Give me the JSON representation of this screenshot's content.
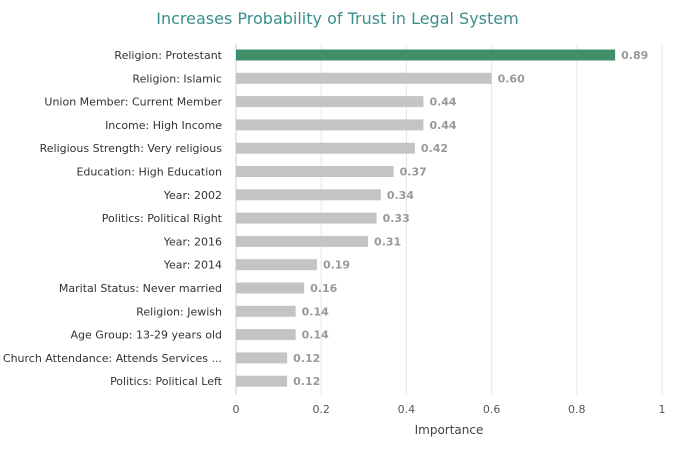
{
  "chart_data": {
    "type": "bar",
    "orientation": "horizontal",
    "title": "Increases Probability of Trust in Legal System",
    "xlabel": "Importance",
    "ylabel": "",
    "xlim": [
      0,
      1
    ],
    "xticks": [
      "0",
      "0.2",
      "0.4",
      "0.6",
      "0.8",
      "1"
    ],
    "grid": true,
    "highlight_color": "#3f8f6b",
    "bar_color": "#c4c4c4",
    "title_color": "#3b8f8a",
    "categories": [
      "Religion: Protestant",
      "Religion: Islamic",
      "Union Member: Current Member",
      "Income: High Income",
      "Religious Strength: Very religious",
      "Education: High Education",
      "Year: 2002",
      "Politics: Political Right",
      "Year: 2016",
      "Year: 2014",
      "Marital Status: Never married",
      "Religion: Jewish",
      "Age Group: 13-29 years old",
      "Church Attendance: Attends Services ...",
      "Politics: Political Left"
    ],
    "values": [
      0.89,
      0.6,
      0.44,
      0.44,
      0.42,
      0.37,
      0.34,
      0.33,
      0.31,
      0.19,
      0.16,
      0.14,
      0.14,
      0.12,
      0.12
    ],
    "value_labels": [
      "0.89",
      "0.60",
      "0.44",
      "0.44",
      "0.42",
      "0.37",
      "0.34",
      "0.33",
      "0.31",
      "0.19",
      "0.16",
      "0.14",
      "0.14",
      "0.12",
      "0.12"
    ]
  }
}
